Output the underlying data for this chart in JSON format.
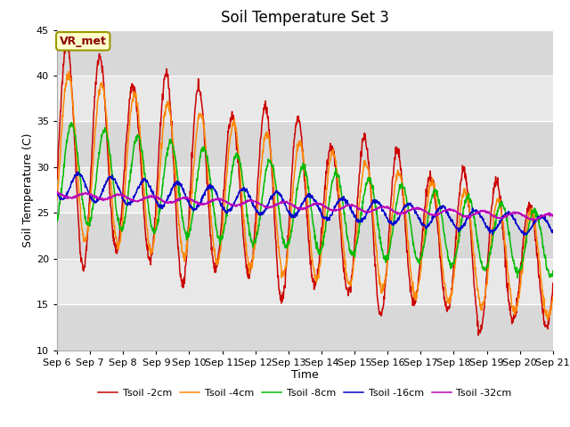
{
  "title": "Soil Temperature Set 3",
  "xlabel": "Time",
  "ylabel": "Soil Temperature (C)",
  "ylim": [
    10,
    45
  ],
  "x_tick_labels": [
    "Sep 6",
    "Sep 7",
    "Sep 8",
    "Sep 9",
    "Sep 10",
    "Sep 11",
    "Sep 12",
    "Sep 13",
    "Sep 14",
    "Sep 15",
    "Sep 16",
    "Sep 17",
    "Sep 18",
    "Sep 19",
    "Sep 20",
    "Sep 21"
  ],
  "line_colors": [
    "#cc0000",
    "#ff8800",
    "#00bb00",
    "#0000cc",
    "#bb00bb"
  ],
  "line_labels": [
    "Tsoil -2cm",
    "Tsoil -4cm",
    "Tsoil -8cm",
    "Tsoil -16cm",
    "Tsoil -32cm"
  ],
  "annotation_text": "VR_met",
  "bg_color": "#ffffff",
  "plot_bg": "#e8e8e8",
  "grid_color": "#ffffff",
  "band_colors": [
    "#d8d8d8",
    "#e8e8e8"
  ],
  "title_fontsize": 12,
  "label_fontsize": 9,
  "tick_fontsize": 8
}
